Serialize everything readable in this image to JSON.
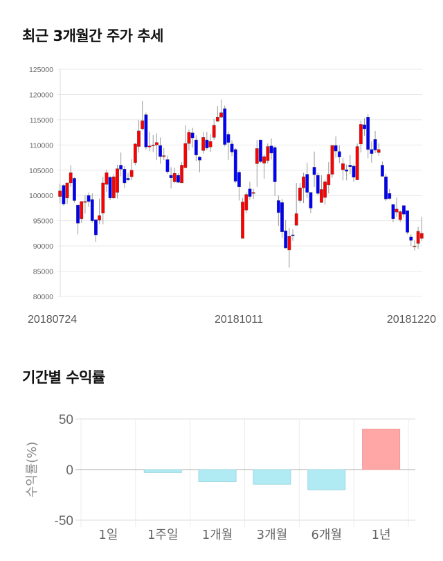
{
  "colors": {
    "up": "#ff0000",
    "down": "#0000ff",
    "wick": "#999999",
    "grid": "#e8e8e8",
    "bar_pos": "#ffa6a6",
    "bar_neg": "#b0eaf2",
    "axis_text": "#666666"
  },
  "chart_data": [
    {
      "type": "candlestick",
      "title": "최근 3개월간 주가 추세",
      "ylim": [
        80000,
        125000
      ],
      "yticks": [
        "125000",
        "120000",
        "115000",
        "110000",
        "105000",
        "100000",
        "95000",
        "90000",
        "85000",
        "80000"
      ],
      "xtick_labels": [
        "20180724",
        "20181011",
        "20181220"
      ],
      "grid": true,
      "candles_ohlc_note": "each entry is [open, close, high, low]",
      "candles": [
        [
          99800,
          100900,
          102300,
          98500
        ],
        [
          102000,
          98300,
          102200,
          98000
        ],
        [
          99500,
          102500,
          102500,
          98300
        ],
        [
          102500,
          104500,
          106000,
          101700
        ],
        [
          103400,
          99000,
          103600,
          98600
        ],
        [
          98100,
          94500,
          98100,
          92300
        ],
        [
          95400,
          98800,
          98900,
          94600
        ],
        [
          98700,
          98800,
          100100,
          96400
        ],
        [
          100000,
          98800,
          100600,
          97700
        ],
        [
          99200,
          95000,
          100400,
          94600
        ],
        [
          95200,
          92200,
          95200,
          90800
        ],
        [
          95100,
          96000,
          99400,
          94300
        ],
        [
          96500,
          102500,
          103700,
          94300
        ],
        [
          102200,
          104500,
          105100,
          100700
        ],
        [
          103600,
          99500,
          103800,
          99100
        ],
        [
          99500,
          103700,
          104200,
          99300
        ],
        [
          100600,
          105300,
          106100,
          99400
        ],
        [
          106000,
          105200,
          108500,
          103800
        ],
        [
          105200,
          102500,
          105800,
          101500
        ],
        [
          103400,
          103100,
          104500,
          102800
        ],
        [
          103700,
          105000,
          107200,
          103000
        ],
        [
          106500,
          110200,
          110400,
          106000
        ],
        [
          109700,
          112800,
          115000,
          108500
        ],
        [
          113200,
          114800,
          118700,
          112900
        ],
        [
          116000,
          109600,
          116400,
          109100
        ],
        [
          109600,
          109800,
          112600,
          108800
        ],
        [
          110000,
          110000,
          112000,
          108600
        ],
        [
          110000,
          110500,
          112300,
          107000
        ],
        [
          109900,
          107700,
          111500,
          106300
        ],
        [
          107700,
          107900,
          109400,
          107000
        ],
        [
          107100,
          104700,
          107900,
          104300
        ],
        [
          104000,
          103500,
          105600,
          101400
        ],
        [
          102700,
          104400,
          105500,
          102500
        ],
        [
          104000,
          102600,
          104400,
          102500
        ],
        [
          102500,
          106000,
          106600,
          102500
        ],
        [
          105500,
          110300,
          113900,
          105400
        ],
        [
          110300,
          112500,
          113100,
          108900
        ],
        [
          112400,
          111400,
          113400,
          109500
        ],
        [
          111000,
          108000,
          111900,
          106800
        ],
        [
          107600,
          107000,
          107800,
          104600
        ],
        [
          108900,
          111500,
          112600,
          108300
        ],
        [
          111000,
          109400,
          112600,
          109000
        ],
        [
          109600,
          110700,
          112100,
          108600
        ],
        [
          111500,
          113900,
          115200,
          111000
        ],
        [
          114700,
          115500,
          117700,
          114600
        ],
        [
          115500,
          116400,
          119000,
          115400
        ],
        [
          117200,
          110100,
          117800,
          109700
        ],
        [
          112100,
          110500,
          112700,
          107000
        ],
        [
          110200,
          108600,
          110900,
          107800
        ],
        [
          109100,
          102800,
          109400,
          102500
        ],
        [
          104600,
          101700,
          105000,
          99000
        ],
        [
          91500,
          98700,
          99500,
          91500
        ],
        [
          97100,
          100200,
          100600,
          96500
        ],
        [
          101300,
          99800,
          102700,
          99200
        ],
        [
          100400,
          100600,
          101300,
          99300
        ],
        [
          106300,
          109300,
          111000,
          101700
        ],
        [
          111000,
          106700,
          111000,
          106500
        ],
        [
          106400,
          107700,
          108100,
          103300
        ],
        [
          106900,
          109700,
          110300,
          106300
        ],
        [
          109800,
          108400,
          111300,
          107100
        ],
        [
          109500,
          102700,
          109800,
          99900
        ],
        [
          99000,
          96600,
          100000,
          94000
        ],
        [
          98600,
          92800,
          99300,
          91600
        ],
        [
          93000,
          89600,
          95100,
          89500
        ],
        [
          89200,
          91900,
          93600,
          85700
        ],
        [
          92200,
          92000,
          93300,
          91000
        ],
        [
          94100,
          96400,
          102500,
          94000
        ],
        [
          99000,
          101500,
          102500,
          98500
        ],
        [
          101500,
          103700,
          104500,
          98500
        ],
        [
          104200,
          100600,
          106500,
          99500
        ],
        [
          100600,
          97500,
          100600,
          96500
        ],
        [
          105600,
          104100,
          108700,
          101700
        ],
        [
          104000,
          100400,
          104500,
          100000
        ],
        [
          98600,
          101200,
          104000,
          98600
        ],
        [
          99600,
          102700,
          103100,
          98200
        ],
        [
          102100,
          104200,
          106600,
          100400
        ],
        [
          104200,
          109900,
          110000,
          103500
        ],
        [
          109900,
          108800,
          111700,
          107500
        ],
        [
          108700,
          107600,
          109900,
          106400
        ],
        [
          105100,
          106300,
          107500,
          103000
        ],
        [
          105100,
          104800,
          106100,
          103000
        ],
        [
          106000,
          105700,
          108000,
          104300
        ],
        [
          105800,
          103600,
          106100,
          102700
        ],
        [
          103100,
          109700,
          110300,
          103100
        ],
        [
          110200,
          114100,
          114800,
          108500
        ],
        [
          114000,
          113200,
          115300,
          111800
        ],
        [
          115500,
          109100,
          116100,
          107400
        ],
        [
          109100,
          108300,
          110700,
          106500
        ],
        [
          111100,
          109000,
          112800,
          108400
        ],
        [
          108500,
          109100,
          110300,
          107900
        ],
        [
          106000,
          103800,
          106700,
          103700
        ],
        [
          103700,
          99300,
          104300,
          98900
        ],
        [
          100400,
          99400,
          101300,
          99200
        ],
        [
          98200,
          95400,
          98200,
          94700
        ],
        [
          96700,
          97300,
          99600,
          95800
        ],
        [
          95200,
          96800,
          97000,
          94800
        ],
        [
          98000,
          96300,
          98000,
          95700
        ],
        [
          97000,
          92700,
          97000,
          92300
        ],
        [
          91800,
          91100,
          92300,
          90000
        ],
        [
          90000,
          90000,
          91100,
          89100
        ],
        [
          90500,
          92900,
          93800,
          89400
        ],
        [
          91500,
          92500,
          95800,
          91000
        ]
      ]
    },
    {
      "type": "bar",
      "title": "기간별 수익률",
      "ylabel": "수익률(%)",
      "ylim": [
        -50,
        50
      ],
      "yticks": [
        "50",
        "0",
        "-50"
      ],
      "categories": [
        "1일",
        "1주일",
        "1개월",
        "3개월",
        "6개월",
        "1년"
      ],
      "values": [
        0,
        -3,
        -12,
        -14.5,
        -20,
        40
      ]
    }
  ]
}
